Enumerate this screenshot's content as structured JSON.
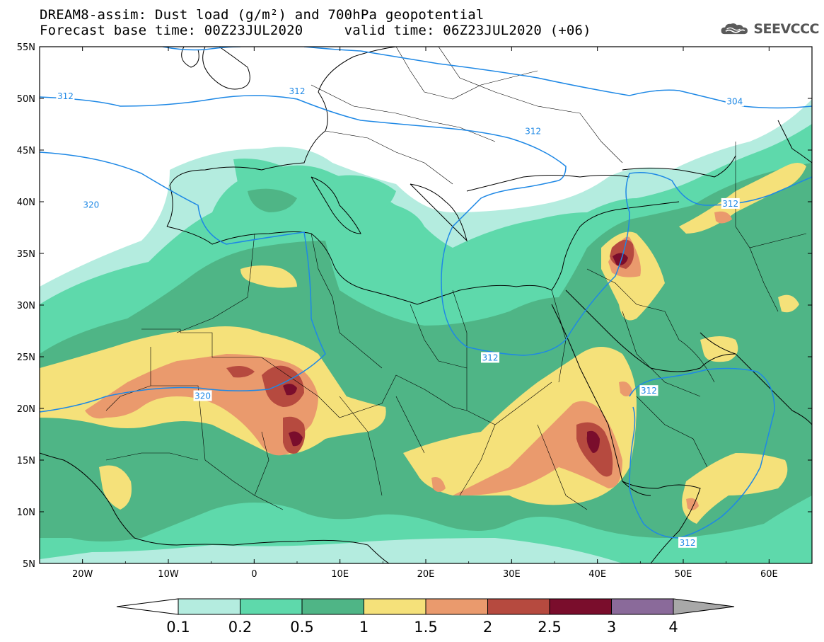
{
  "title_line1": "DREAM8-assim: Dust load (g/m²) and 700hPa geopotential",
  "title_line2": "Forecast base time: 00Z23JUL2020     valid time: 06Z23JUL2020 (+06)",
  "logo": {
    "icon": "cloud-logo-icon",
    "text": "SEEVCCC"
  },
  "map": {
    "lon_range": [
      -25,
      65
    ],
    "lat_range": [
      5,
      55
    ],
    "lat_ticks": [
      "55N",
      "50N",
      "45N",
      "40N",
      "35N",
      "30N",
      "25N",
      "20N",
      "15N",
      "10N",
      "5N"
    ],
    "lon_ticks": [
      "20W",
      "10W",
      "0",
      "10E",
      "20E",
      "30E",
      "40E",
      "50E",
      "60E"
    ],
    "contour_labels": [
      {
        "text": "304",
        "lon": 56,
        "lat": 49.7
      },
      {
        "text": "312",
        "lon": -22,
        "lat": 50.2
      },
      {
        "text": "312",
        "lon": 5,
        "lat": 50.7
      },
      {
        "text": "312",
        "lon": 32.5,
        "lat": 46.8
      },
      {
        "text": "312",
        "lon": 55.5,
        "lat": 39.8
      },
      {
        "text": "312",
        "lon": 27.5,
        "lat": 24.9
      },
      {
        "text": "312",
        "lon": 46,
        "lat": 21.7
      },
      {
        "text": "312",
        "lon": 50.5,
        "lat": 7
      },
      {
        "text": "320",
        "lon": -19,
        "lat": 39.7
      },
      {
        "text": "320",
        "lon": -6,
        "lat": 21.2
      },
      {
        "text": "304",
        "lon": -31.5,
        "lat": 54.6
      }
    ],
    "ocean_color": "#ffffff",
    "contour_color": "#1e88e5"
  },
  "colorbar": {
    "labels": [
      "0.1",
      "0.2",
      "0.5",
      "1",
      "1.5",
      "2",
      "2.5",
      "3",
      "4"
    ],
    "colors": [
      "#b4ecdf",
      "#5ed9ab",
      "#4fb586",
      "#f5e17a",
      "#ea9a6d",
      "#b64a3f",
      "#7a0d2c",
      "#8a6a9a"
    ],
    "under_color": "#ffffff",
    "over_color": "#a8a8a8"
  }
}
